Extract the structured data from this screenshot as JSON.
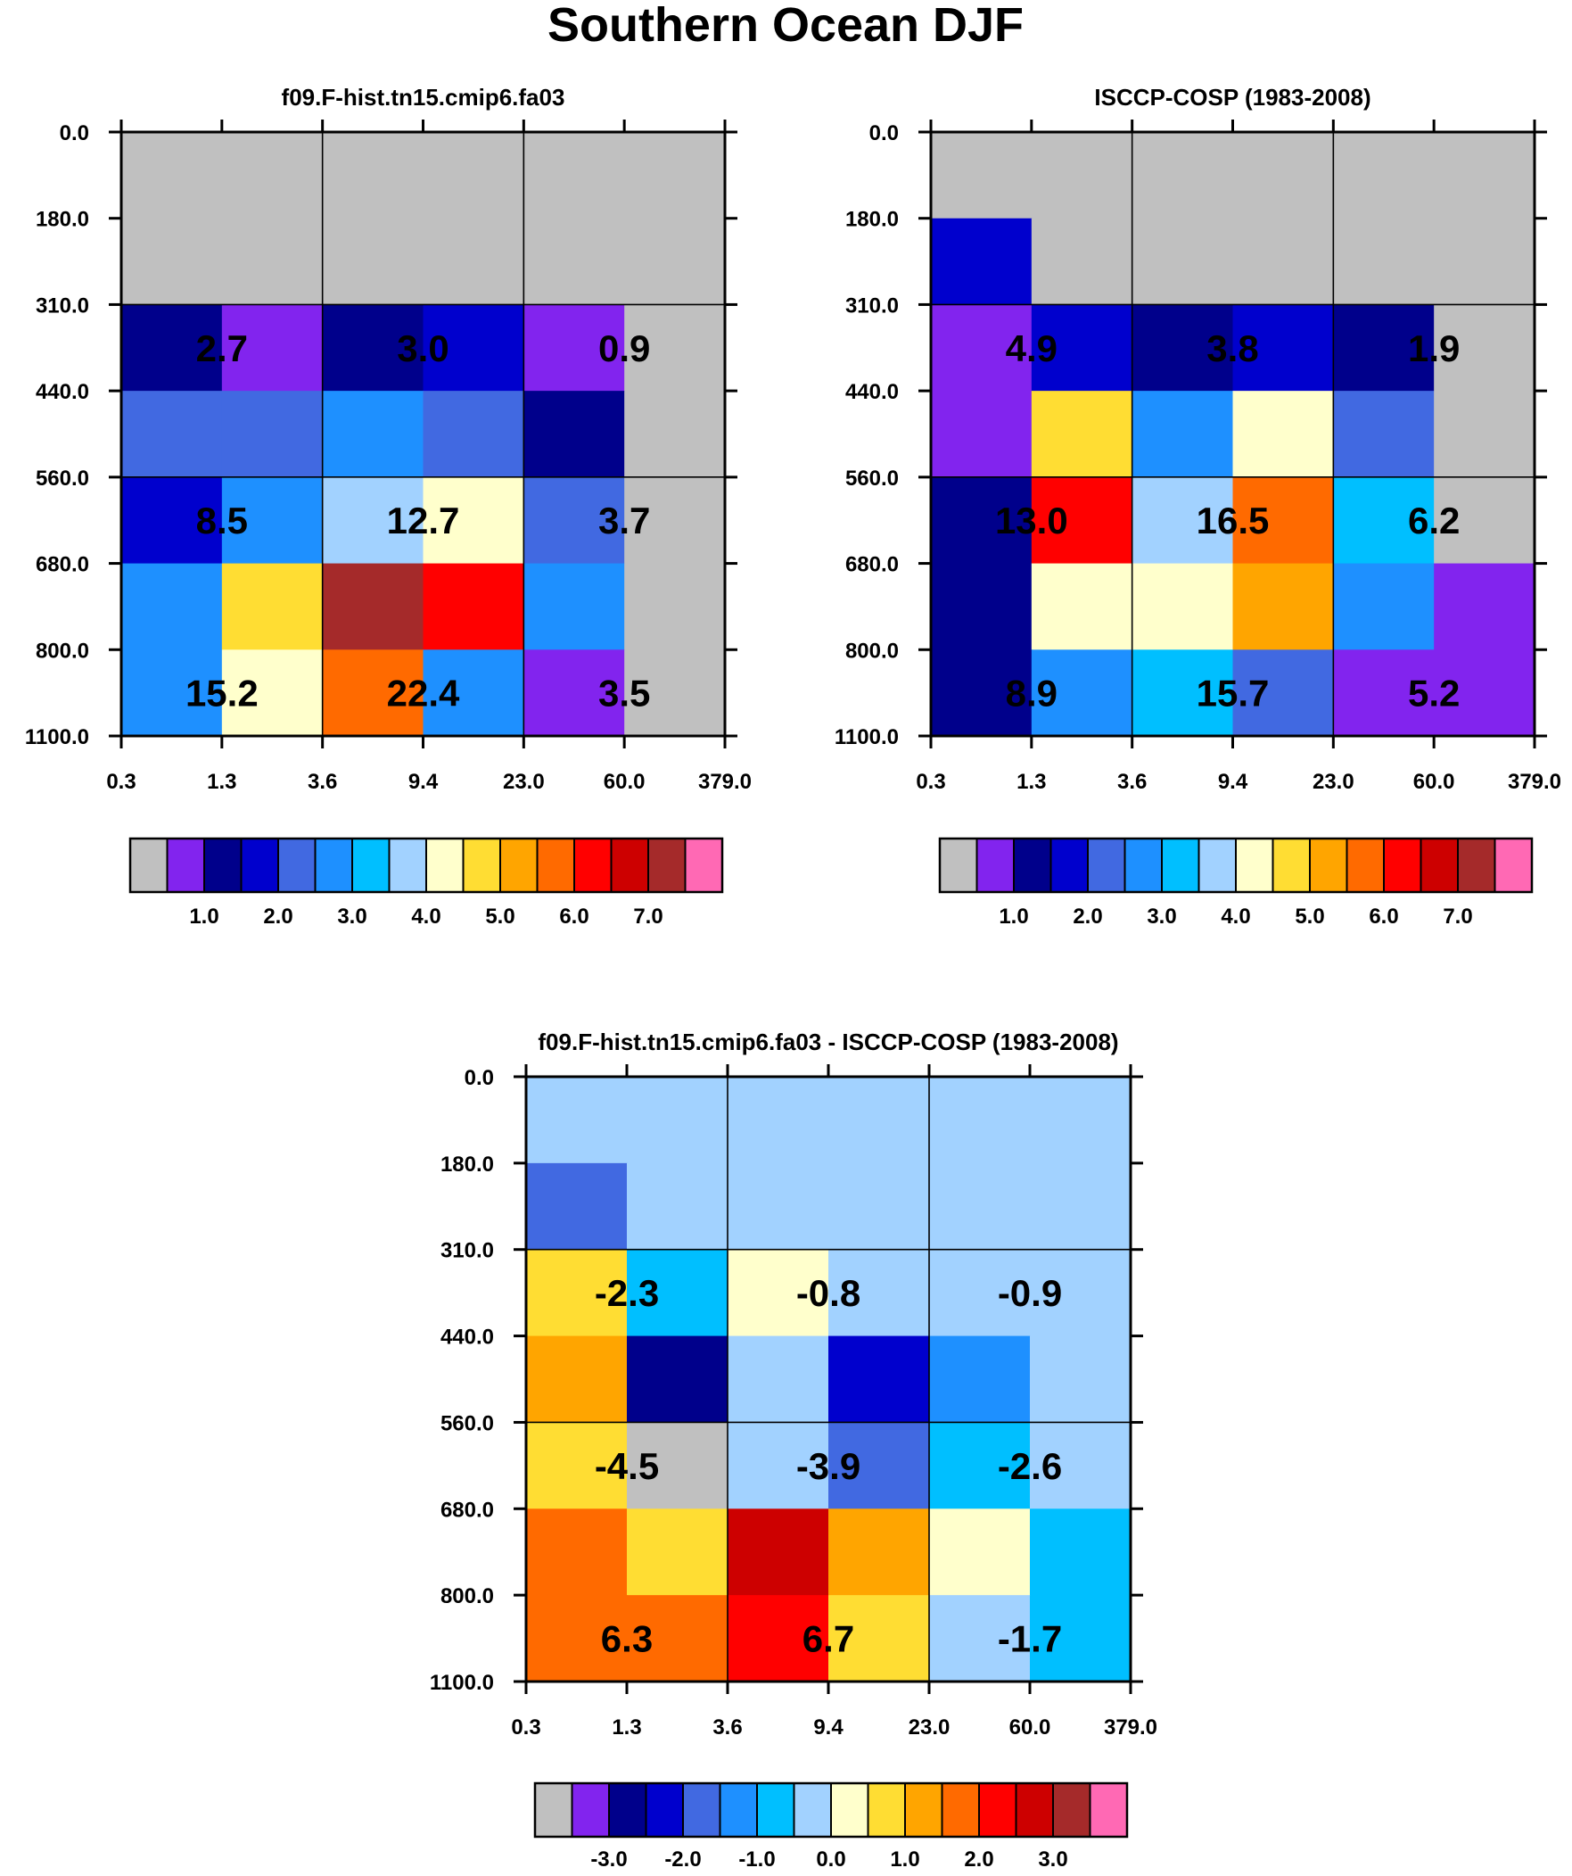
{
  "figure_title": "Southern Ocean DJF",
  "palette": [
    "#c0c0c0",
    "#8224ee",
    "#00008b",
    "#0000cd",
    "#4169e1",
    "#1e90ff",
    "#00bfff",
    "#a2d2ff",
    "#ffffcc",
    "#ffdd33",
    "#ffa500",
    "#ff6a00",
    "#ff0000",
    "#cd0000",
    "#a52a2a",
    "#ff69b4"
  ],
  "chart_data": [
    {
      "type": "heatmap",
      "title": "f09.F-hist.tn15.cmip6.fa03",
      "x_ticks": [
        "0.3",
        "1.3",
        "3.6",
        "9.4",
        "23.0",
        "60.0",
        "379.0"
      ],
      "y_ticks": [
        "0.0",
        "180.0",
        "310.0",
        "440.0",
        "560.0",
        "680.0",
        "800.0",
        "1100.0"
      ],
      "cells": [
        [
          0,
          0,
          0,
          0,
          0,
          0
        ],
        [
          0,
          0,
          0,
          0,
          0,
          0
        ],
        [
          2,
          1,
          2,
          3,
          1,
          0
        ],
        [
          4,
          4,
          5,
          4,
          2,
          0
        ],
        [
          3,
          5,
          7,
          8,
          4,
          0
        ],
        [
          5,
          9,
          14,
          12,
          5,
          0
        ],
        [
          5,
          8,
          11,
          5,
          1,
          0
        ]
      ],
      "annotations": [
        {
          "text": "2.7",
          "col": 1,
          "row": 2
        },
        {
          "text": "3.0",
          "col": 3,
          "row": 2
        },
        {
          "text": "0.9",
          "col": 5,
          "row": 2
        },
        {
          "text": "8.5",
          "col": 1,
          "row": 4
        },
        {
          "text": "12.7",
          "col": 3,
          "row": 4
        },
        {
          "text": "3.7",
          "col": 5,
          "row": 4
        },
        {
          "text": "15.2",
          "col": 1,
          "row": 6
        },
        {
          "text": "22.4",
          "col": 3,
          "row": 6
        },
        {
          "text": "3.5",
          "col": 5,
          "row": 6
        }
      ],
      "colorbar_labels": [
        "1.0",
        "2.0",
        "3.0",
        "4.0",
        "5.0",
        "6.0",
        "7.0"
      ]
    },
    {
      "type": "heatmap",
      "title": "ISCCP-COSP (1983-2008)",
      "x_ticks": [
        "0.3",
        "1.3",
        "3.6",
        "9.4",
        "23.0",
        "60.0",
        "379.0"
      ],
      "y_ticks": [
        "0.0",
        "180.0",
        "310.0",
        "440.0",
        "560.0",
        "680.0",
        "800.0",
        "1100.0"
      ],
      "cells": [
        [
          0,
          0,
          0,
          0,
          0,
          0
        ],
        [
          3,
          0,
          0,
          0,
          0,
          0
        ],
        [
          1,
          3,
          2,
          3,
          2,
          0
        ],
        [
          1,
          9,
          5,
          8,
          4,
          0
        ],
        [
          2,
          12,
          7,
          11,
          6,
          0
        ],
        [
          2,
          8,
          8,
          10,
          5,
          1
        ],
        [
          2,
          5,
          6,
          4,
          1,
          1
        ]
      ],
      "annotations": [
        {
          "text": "4.9",
          "col": 1,
          "row": 2
        },
        {
          "text": "3.8",
          "col": 3,
          "row": 2
        },
        {
          "text": "1.9",
          "col": 5,
          "row": 2
        },
        {
          "text": "13.0",
          "col": 1,
          "row": 4
        },
        {
          "text": "16.5",
          "col": 3,
          "row": 4
        },
        {
          "text": "6.2",
          "col": 5,
          "row": 4
        },
        {
          "text": "8.9",
          "col": 1,
          "row": 6
        },
        {
          "text": "15.7",
          "col": 3,
          "row": 6
        },
        {
          "text": "5.2",
          "col": 5,
          "row": 6
        }
      ],
      "colorbar_labels": [
        "1.0",
        "2.0",
        "3.0",
        "4.0",
        "5.0",
        "6.0",
        "7.0"
      ]
    },
    {
      "type": "heatmap",
      "title": "f09.F-hist.tn15.cmip6.fa03 - ISCCP-COSP (1983-2008)",
      "x_ticks": [
        "0.3",
        "1.3",
        "3.6",
        "9.4",
        "23.0",
        "60.0",
        "379.0"
      ],
      "y_ticks": [
        "0.0",
        "180.0",
        "310.0",
        "440.0",
        "560.0",
        "680.0",
        "800.0",
        "1100.0"
      ],
      "cells": [
        [
          7,
          7,
          7,
          7,
          7,
          7
        ],
        [
          4,
          7,
          7,
          7,
          7,
          7
        ],
        [
          9,
          6,
          8,
          7,
          7,
          7
        ],
        [
          10,
          2,
          7,
          3,
          5,
          7
        ],
        [
          9,
          0,
          7,
          4,
          6,
          7
        ],
        [
          11,
          9,
          13,
          10,
          8,
          6
        ],
        [
          11,
          11,
          12,
          9,
          7,
          6
        ]
      ],
      "annotations": [
        {
          "text": "-2.3",
          "col": 1,
          "row": 2
        },
        {
          "text": "-0.8",
          "col": 3,
          "row": 2
        },
        {
          "text": "-0.9",
          "col": 5,
          "row": 2
        },
        {
          "text": "-4.5",
          "col": 1,
          "row": 4
        },
        {
          "text": "-3.9",
          "col": 3,
          "row": 4
        },
        {
          "text": "-2.6",
          "col": 5,
          "row": 4
        },
        {
          "text": "6.3",
          "col": 1,
          "row": 6
        },
        {
          "text": "6.7",
          "col": 3,
          "row": 6
        },
        {
          "text": "-1.7",
          "col": 5,
          "row": 6
        }
      ],
      "colorbar_labels": [
        "-3.0",
        "-2.0",
        "-1.0",
        "0.0",
        "1.0",
        "2.0",
        "3.0"
      ]
    }
  ]
}
